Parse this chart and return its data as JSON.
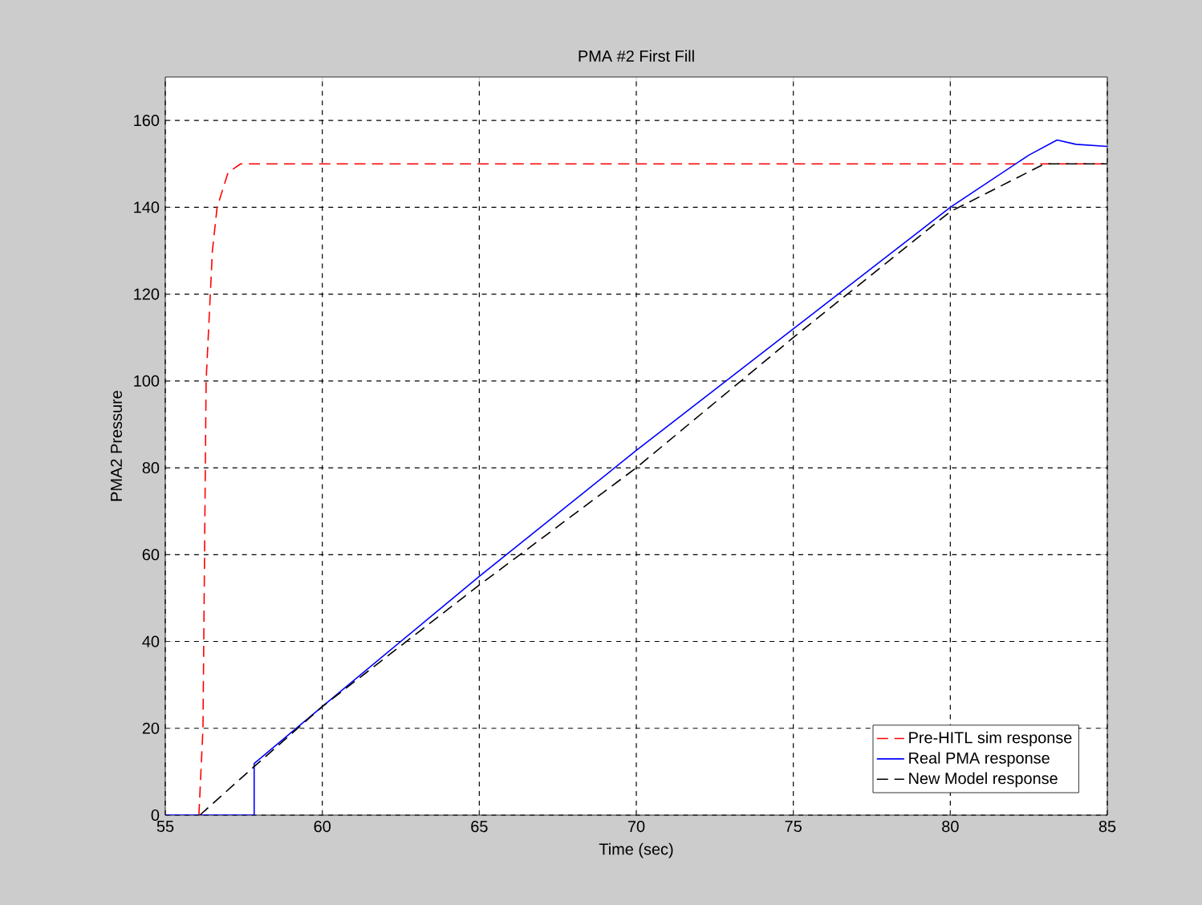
{
  "chart_data": {
    "type": "line",
    "title": "PMA #2 First Fill",
    "xlabel": "Time (sec)",
    "ylabel": "PMA2 Pressure",
    "xlim": [
      55,
      85
    ],
    "ylim": [
      0,
      170
    ],
    "xticks": [
      55,
      60,
      65,
      70,
      75,
      80,
      85
    ],
    "yticks": [
      0,
      20,
      40,
      60,
      80,
      100,
      120,
      140,
      160
    ],
    "grid": true,
    "legend": "bottom right",
    "marker": "none",
    "series": [
      {
        "name": "Pre-HITL sim response",
        "color": "#ff0000",
        "line_style": "dashed",
        "x": [
          56.07,
          56.2,
          56.3,
          56.5,
          56.65,
          57.0,
          57.4,
          85
        ],
        "values": [
          0,
          20,
          100,
          130,
          140,
          148,
          150,
          150
        ]
      },
      {
        "name": "Real PMA response",
        "color": "#0000ff",
        "line_style": "solid",
        "x": [
          55,
          57.83,
          57.83,
          60,
          65,
          70,
          75,
          80,
          82.5,
          83.4,
          84,
          85
        ],
        "values": [
          0,
          0,
          11.9,
          25,
          55,
          84,
          112,
          140,
          152,
          155.5,
          154.5,
          154
        ]
      },
      {
        "name": "New Model response",
        "color": "#000000",
        "line_style": "dashed",
        "x": [
          56.1,
          57.8,
          60,
          65,
          70,
          75,
          80,
          83,
          85
        ],
        "values": [
          0,
          11,
          25,
          53,
          80,
          110,
          139,
          150,
          150
        ]
      }
    ]
  }
}
